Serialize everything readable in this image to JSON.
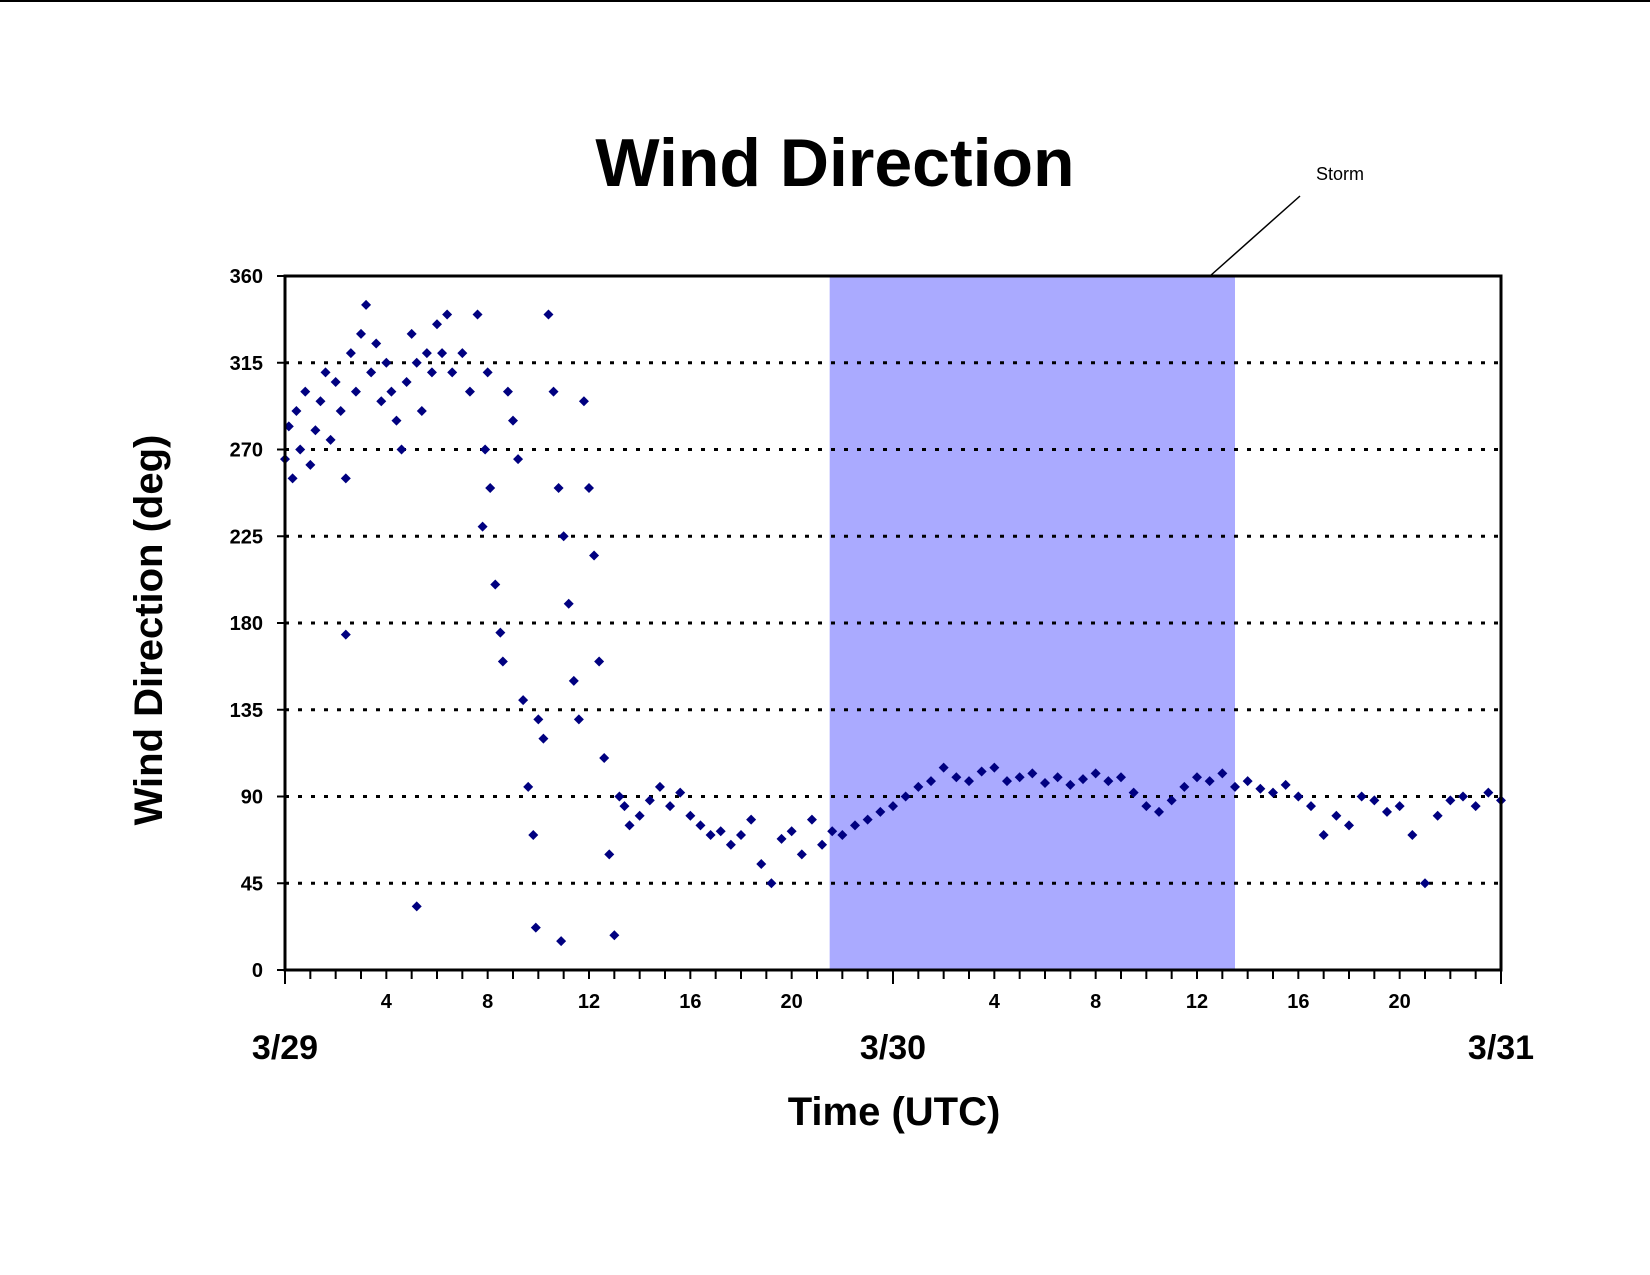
{
  "chart_data": {
    "type": "scatter",
    "title": "Wind Direction",
    "xlabel": "Time (UTC)",
    "ylabel": "Wind Direction (deg)",
    "x_unit": "hours UTC from 3/29 00:00",
    "xlim": [
      0,
      48
    ],
    "ylim": [
      0,
      360
    ],
    "y_ticks": [
      0,
      45,
      90,
      135,
      180,
      225,
      270,
      315,
      360
    ],
    "x_tick_labels": [
      {
        "hour": 4,
        "label": "4"
      },
      {
        "hour": 8,
        "label": "8"
      },
      {
        "hour": 12,
        "label": "12"
      },
      {
        "hour": 16,
        "label": "16"
      },
      {
        "hour": 20,
        "label": "20"
      },
      {
        "hour": 28,
        "label": "4"
      },
      {
        "hour": 32,
        "label": "8"
      },
      {
        "hour": 36,
        "label": "12"
      },
      {
        "hour": 40,
        "label": "16"
      },
      {
        "hour": 44,
        "label": "20"
      }
    ],
    "day_labels": [
      {
        "hour": 0,
        "label": "3/29"
      },
      {
        "hour": 24,
        "label": "3/30"
      },
      {
        "hour": 48,
        "label": "3/31"
      }
    ],
    "grid": "horizontal dotted",
    "marker": "diamond",
    "marker_color": "#000080",
    "annotation": {
      "text": "Storm",
      "x_start": 21.5,
      "x_end": 37.5,
      "color": "#aaaaff"
    },
    "series": [
      {
        "points": [
          [
            0.0,
            265
          ],
          [
            0.15,
            282
          ],
          [
            0.3,
            255
          ],
          [
            0.45,
            290
          ],
          [
            0.6,
            270
          ],
          [
            0.8,
            300
          ],
          [
            1.0,
            262
          ],
          [
            1.2,
            280
          ],
          [
            1.4,
            295
          ],
          [
            1.6,
            310
          ],
          [
            1.8,
            275
          ],
          [
            2.0,
            305
          ],
          [
            2.2,
            290
          ],
          [
            2.4,
            255
          ],
          [
            2.6,
            320
          ],
          [
            2.8,
            300
          ],
          [
            2.4,
            174
          ],
          [
            3.0,
            330
          ],
          [
            3.2,
            345
          ],
          [
            3.4,
            310
          ],
          [
            3.6,
            325
          ],
          [
            3.8,
            295
          ],
          [
            4.0,
            315
          ],
          [
            4.2,
            300
          ],
          [
            4.4,
            285
          ],
          [
            4.6,
            270
          ],
          [
            4.8,
            305
          ],
          [
            5.0,
            330
          ],
          [
            5.2,
            315
          ],
          [
            5.4,
            290
          ],
          [
            5.6,
            320
          ],
          [
            5.8,
            310
          ],
          [
            6.0,
            335
          ],
          [
            6.2,
            320
          ],
          [
            6.4,
            340
          ],
          [
            6.6,
            310
          ],
          [
            5.2,
            33
          ],
          [
            7.0,
            320
          ],
          [
            7.3,
            300
          ],
          [
            7.6,
            340
          ],
          [
            7.8,
            230
          ],
          [
            7.9,
            270
          ],
          [
            8.0,
            310
          ],
          [
            8.1,
            250
          ],
          [
            8.3,
            200
          ],
          [
            8.5,
            175
          ],
          [
            8.6,
            160
          ],
          [
            8.8,
            300
          ],
          [
            9.0,
            285
          ],
          [
            9.2,
            265
          ],
          [
            9.4,
            140
          ],
          [
            9.6,
            95
          ],
          [
            9.8,
            70
          ],
          [
            9.9,
            22
          ],
          [
            10.0,
            130
          ],
          [
            10.2,
            120
          ],
          [
            10.4,
            340
          ],
          [
            10.6,
            300
          ],
          [
            10.8,
            250
          ],
          [
            10.9,
            15
          ],
          [
            11.0,
            225
          ],
          [
            11.2,
            190
          ],
          [
            11.4,
            150
          ],
          [
            11.6,
            130
          ],
          [
            11.8,
            295
          ],
          [
            12.0,
            250
          ],
          [
            12.2,
            215
          ],
          [
            12.4,
            160
          ],
          [
            12.6,
            110
          ],
          [
            12.8,
            60
          ],
          [
            13.0,
            18
          ],
          [
            13.2,
            90
          ],
          [
            13.4,
            85
          ],
          [
            13.6,
            75
          ],
          [
            14.0,
            80
          ],
          [
            14.4,
            88
          ],
          [
            14.8,
            95
          ],
          [
            15.2,
            85
          ],
          [
            15.6,
            92
          ],
          [
            16.0,
            80
          ],
          [
            16.4,
            75
          ],
          [
            16.8,
            70
          ],
          [
            17.2,
            72
          ],
          [
            17.6,
            65
          ],
          [
            18.0,
            70
          ],
          [
            18.4,
            78
          ],
          [
            18.8,
            55
          ],
          [
            19.2,
            45
          ],
          [
            19.6,
            68
          ],
          [
            20.0,
            72
          ],
          [
            20.4,
            60
          ],
          [
            20.8,
            78
          ],
          [
            21.2,
            65
          ],
          [
            21.6,
            72
          ],
          [
            22.0,
            70
          ],
          [
            22.5,
            75
          ],
          [
            23.0,
            78
          ],
          [
            23.5,
            82
          ],
          [
            24.0,
            85
          ],
          [
            24.5,
            90
          ],
          [
            25.0,
            95
          ],
          [
            25.5,
            98
          ],
          [
            26.0,
            105
          ],
          [
            26.5,
            100
          ],
          [
            27.0,
            98
          ],
          [
            27.5,
            103
          ],
          [
            28.0,
            105
          ],
          [
            28.5,
            98
          ],
          [
            29.0,
            100
          ],
          [
            29.5,
            102
          ],
          [
            30.0,
            97
          ],
          [
            30.5,
            100
          ],
          [
            31.0,
            96
          ],
          [
            31.5,
            99
          ],
          [
            32.0,
            102
          ],
          [
            32.5,
            98
          ],
          [
            33.0,
            100
          ],
          [
            33.5,
            92
          ],
          [
            34.0,
            85
          ],
          [
            34.5,
            82
          ],
          [
            35.0,
            88
          ],
          [
            35.5,
            95
          ],
          [
            36.0,
            100
          ],
          [
            36.5,
            98
          ],
          [
            37.0,
            102
          ],
          [
            37.5,
            95
          ],
          [
            38.0,
            98
          ],
          [
            38.5,
            94
          ],
          [
            39.0,
            92
          ],
          [
            39.5,
            96
          ],
          [
            40.0,
            90
          ],
          [
            40.5,
            85
          ],
          [
            41.0,
            70
          ],
          [
            41.5,
            80
          ],
          [
            42.0,
            75
          ],
          [
            42.5,
            90
          ],
          [
            43.0,
            88
          ],
          [
            43.5,
            82
          ],
          [
            44.0,
            85
          ],
          [
            44.5,
            70
          ],
          [
            45.0,
            45
          ],
          [
            45.5,
            80
          ],
          [
            46.0,
            88
          ],
          [
            46.5,
            90
          ],
          [
            47.0,
            85
          ],
          [
            47.5,
            92
          ],
          [
            48.0,
            88
          ]
        ]
      }
    ]
  }
}
